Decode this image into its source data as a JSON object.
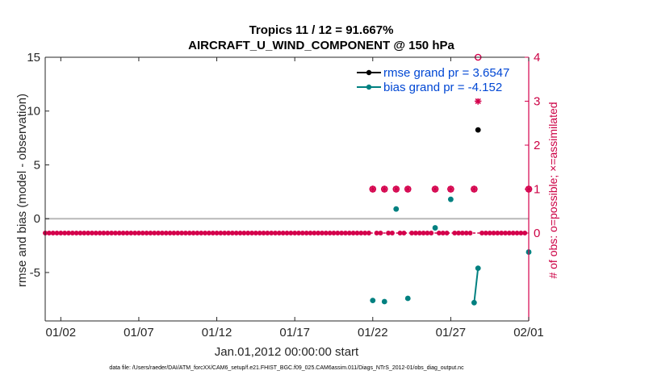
{
  "chart_data": {
    "type": "scatter",
    "title": "Tropics 11 / 12 = 91.667%",
    "subtitle": "AIRCRAFT_U_WIND_COMPONENT @ 150 hPa",
    "xlabel": "Jan.01,2012 00:00:00 start",
    "ylabel": "rmse and bias (model - observation)",
    "ylabel_right": "# of obs: o=possible; ×=assimilated",
    "footnote": "data file: /Users/raeder/DAI/ATM_forcXX/CAM6_setup/f.e21.FHIST_BGC.f09_025.CAM6assim.011/Diags_NTrS_2012-01/obs_diag_output.nc",
    "xlim": [
      1,
      32
    ],
    "ylim": [
      -9.5,
      15
    ],
    "ylim_right": [
      -2,
      4
    ],
    "x_ticks": [
      2,
      7,
      12,
      17,
      22,
      27,
      32
    ],
    "x_tick_labels": [
      "01/02",
      "01/07",
      "01/12",
      "01/17",
      "01/22",
      "01/27",
      "02/01"
    ],
    "y_ticks": [
      -5,
      0,
      5,
      10,
      15
    ],
    "y_tick_labels": [
      "-5",
      "0",
      "5",
      "10",
      "15"
    ],
    "y_right_ticks": [
      0,
      1,
      2,
      3,
      4
    ],
    "y_right_tick_labels": [
      "0",
      "1",
      "2",
      "3",
      "4"
    ],
    "legend_position": "top-right",
    "series": [
      {
        "name": "rmse",
        "legend_label": "rmse grand pr = 3.6547",
        "color": "#000000",
        "points": [
          [
            28.75,
            8.25
          ]
        ]
      },
      {
        "name": "bias",
        "legend_label": "bias grand pr = -4.152",
        "color": "#008080",
        "points": [
          [
            22.0,
            -7.6
          ],
          [
            22.75,
            -7.7
          ],
          [
            23.5,
            0.9
          ],
          [
            24.25,
            -7.4
          ],
          [
            26.0,
            -0.85
          ],
          [
            27.0,
            1.8
          ],
          [
            28.5,
            -7.8
          ],
          [
            28.75,
            -4.6
          ],
          [
            32.0,
            -3.1
          ]
        ],
        "line_segment": [
          [
            28.5,
            -7.8
          ],
          [
            28.75,
            -4.6
          ]
        ]
      },
      {
        "name": "obs_possible",
        "axis": "right",
        "color": "#d4004c",
        "marker": "o",
        "ones": [
          22.0,
          22.75,
          23.5,
          24.25,
          26.0,
          27.0,
          28.5,
          32.0
        ],
        "threes": [],
        "fours": [
          28.75
        ]
      },
      {
        "name": "obs_assimilated",
        "axis": "right",
        "color": "#d4004c",
        "marker": "*",
        "ones": [
          22.0,
          22.75,
          23.5,
          24.25,
          26.0,
          27.0,
          28.5,
          32.0
        ],
        "threes": [
          28.75
        ]
      }
    ]
  }
}
